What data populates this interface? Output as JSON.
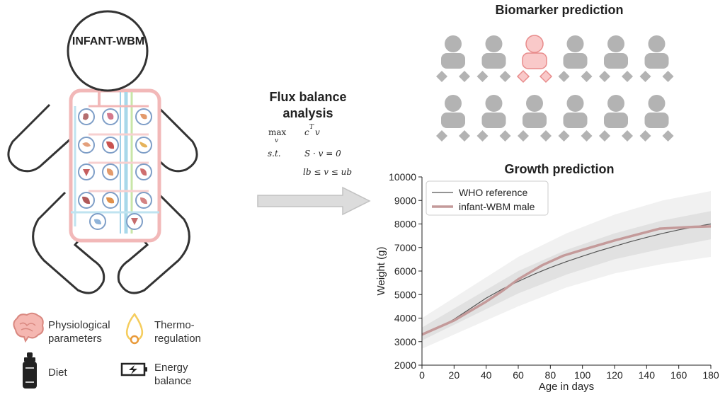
{
  "model": {
    "title": "INFANT-WBM"
  },
  "fba": {
    "title_line1": "Flux balance",
    "title_line2": "analysis",
    "eq_max": "max",
    "eq_max_sub": "v",
    "eq_obj": "c",
    "eq_obj_sup": "T",
    "eq_obj_v": "v",
    "eq_st": "s.t.",
    "eq_constraint1": "S · v = 0",
    "eq_constraint2": "lb ≤ v ≤ ub"
  },
  "legend": {
    "physio_line1": "Physiological",
    "physio_line2": "parameters",
    "thermo_line1": "Thermo-",
    "thermo_line2": "regulation",
    "diet": "Diet",
    "energy_line1": "Energy",
    "energy_line2": "balance"
  },
  "biomarker": {
    "title": "Biomarker prediction",
    "grid_rows": 2,
    "grid_cols": 6,
    "highlighted_index": 2,
    "colors": {
      "default": "#b3b3b3",
      "highlight_fill": "#f9c9c9",
      "highlight_stroke": "#e88b8b"
    }
  },
  "chart_data": {
    "type": "line",
    "title": "Growth prediction",
    "xlabel": "Age in days",
    "ylabel": "Weight (g)",
    "xlim": [
      0,
      180
    ],
    "ylim": [
      2000,
      10000
    ],
    "xticks": [
      0,
      20,
      40,
      60,
      80,
      100,
      120,
      140,
      160,
      180
    ],
    "yticks": [
      2000,
      3000,
      4000,
      5000,
      6000,
      7000,
      8000,
      9000,
      10000
    ],
    "legend_position": "top-left",
    "series": [
      {
        "name": "WHO reference",
        "color": "#555555",
        "x": [
          0,
          10,
          20,
          30,
          40,
          50,
          60,
          70,
          80,
          90,
          100,
          110,
          120,
          130,
          140,
          150,
          160,
          170,
          180
        ],
        "y": [
          3300,
          3580,
          3950,
          4400,
          4850,
          5230,
          5560,
          5870,
          6150,
          6400,
          6630,
          6850,
          7050,
          7250,
          7430,
          7600,
          7750,
          7880,
          8000
        ]
      },
      {
        "name": "infant-WBM male",
        "color": "#c49a9a",
        "x": [
          0,
          20,
          40,
          50,
          60,
          75,
          88,
          100,
          120,
          148,
          170,
          180
        ],
        "y": [
          3300,
          3900,
          4700,
          5150,
          5650,
          6250,
          6650,
          6900,
          7300,
          7800,
          7880,
          7900
        ]
      }
    ],
    "bands": [
      {
        "color": "#f1f1f1",
        "x": [
          0,
          30,
          60,
          90,
          120,
          150,
          180
        ],
        "low": [
          2700,
          3600,
          4500,
          5300,
          5900,
          6300,
          6600
        ],
        "high": [
          4000,
          5300,
          6600,
          7600,
          8400,
          9000,
          9400
        ]
      },
      {
        "color": "#e1e1e1",
        "x": [
          0,
          30,
          60,
          90,
          120,
          150,
          180
        ],
        "low": [
          3050,
          4050,
          5050,
          5850,
          6500,
          6950,
          7350
        ],
        "high": [
          3600,
          4800,
          6000,
          6900,
          7600,
          8150,
          8550
        ]
      }
    ]
  }
}
